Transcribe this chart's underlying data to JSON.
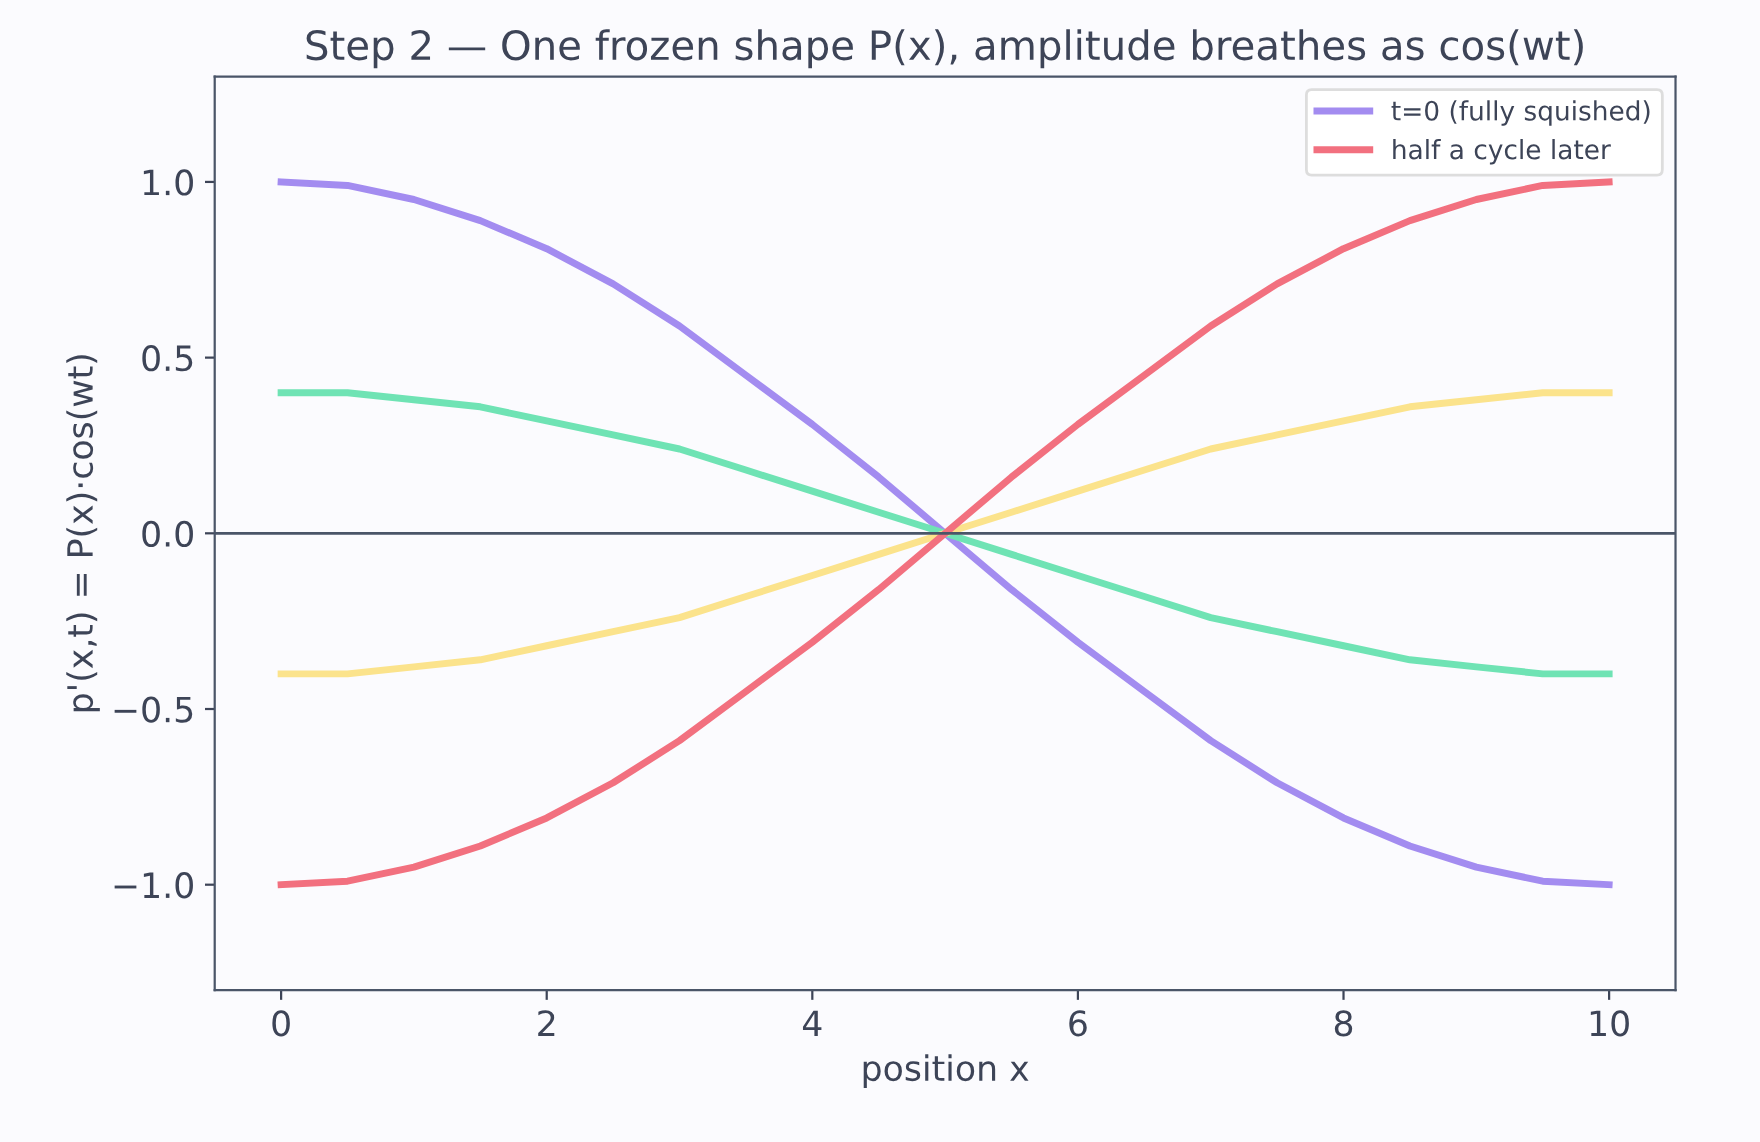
{
  "chart_data": {
    "type": "line",
    "title": "Step 2 — One frozen shape P(x), amplitude breathes as cos(wt)",
    "xlabel": "position x",
    "ylabel": "p'(x,t) = P(x)·cos(wt)",
    "x": [
      0,
      0.5,
      1,
      1.5,
      2,
      2.5,
      3,
      3.5,
      4,
      4.5,
      5,
      5.5,
      6,
      6.5,
      7,
      7.5,
      8,
      8.5,
      9,
      9.5,
      10
    ],
    "series": [
      {
        "name": "t=0 (fully squished)",
        "color": "#a38cf0",
        "values": [
          1.0,
          0.99,
          0.95,
          0.89,
          0.81,
          0.71,
          0.59,
          0.45,
          0.31,
          0.16,
          0.0,
          -0.16,
          -0.31,
          -0.45,
          -0.59,
          -0.71,
          -0.81,
          -0.89,
          -0.95,
          -0.99,
          -1.0
        ]
      },
      {
        "color": "#6fe3b4",
        "values": [
          0.4,
          0.4,
          0.38,
          0.36,
          0.32,
          0.28,
          0.24,
          0.18,
          0.12,
          0.06,
          0.0,
          -0.06,
          -0.12,
          -0.18,
          -0.24,
          -0.28,
          -0.32,
          -0.36,
          -0.38,
          -0.4,
          -0.4
        ]
      },
      {
        "color": "#fbe38c",
        "values": [
          -0.4,
          -0.4,
          -0.38,
          -0.36,
          -0.32,
          -0.28,
          -0.24,
          -0.18,
          -0.12,
          -0.06,
          0.0,
          0.06,
          0.12,
          0.18,
          0.24,
          0.28,
          0.32,
          0.36,
          0.38,
          0.4,
          0.4
        ]
      },
      {
        "name": "half a cycle later",
        "color": "#f2707f",
        "values": [
          -1.0,
          -0.99,
          -0.95,
          -0.89,
          -0.81,
          -0.71,
          -0.59,
          -0.45,
          -0.31,
          -0.16,
          0.0,
          0.16,
          0.31,
          0.45,
          0.59,
          0.71,
          0.81,
          0.89,
          0.95,
          0.99,
          1.0
        ]
      }
    ],
    "xlim": [
      -0.5,
      10.5
    ],
    "xticks": [
      0,
      2,
      4,
      6,
      8,
      10
    ],
    "ylim": [
      -1.3,
      1.3
    ],
    "yticks": [
      {
        "value": -1.0,
        "label": "−1.0"
      },
      {
        "value": -0.5,
        "label": "−0.5"
      },
      {
        "value": 0,
        "label": "0.0"
      },
      {
        "value": 0.5,
        "label": "0.5"
      },
      {
        "value": 1.0,
        "label": "1.0"
      }
    ],
    "ref_lines": [
      {
        "axis": "y",
        "value": 0,
        "color": "#4a5568"
      }
    ],
    "legend": "top right",
    "grid": false,
    "marker": "none",
    "line_style": "solid"
  }
}
